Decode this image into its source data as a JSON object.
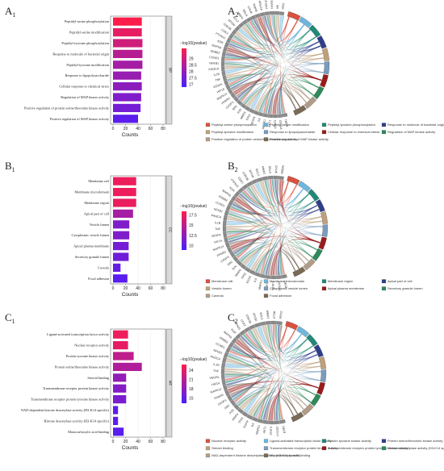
{
  "bar_color_low": "#4a1dff",
  "bar_color_high": "#ff1d4a",
  "chord_colors": [
    "#d8523f",
    "#6fb6de",
    "#1f8a77",
    "#2e3f8a",
    "#c0a07a",
    "#7a9cbf",
    "#9b1a1a",
    "#2f8a5a",
    "#b39c86",
    "#7a6a55"
  ],
  "chart_data": [
    {
      "type": "bar",
      "panel": "A1",
      "orientation": "horizontal",
      "categories": [
        "Peptidyl-serine phosphorylation",
        "Peptidyl-serine modification",
        "Peptidyl-tyrosine phosphorylation",
        "Response to molecule of bacterial origin",
        "Peptidyl-tyrosine modification",
        "Response to lipopolysaccharide",
        "Cellular response to chemical stress",
        "Regulation of MAP kinase activity",
        "Positive regulation of protein serine/threonine kinase activity",
        "Positive regulation of MAP kinase activity"
      ],
      "values": [
        46,
        46,
        47,
        47,
        47,
        45,
        46,
        45,
        44,
        40
      ],
      "pvalue_color": [
        29.8,
        29.4,
        29.0,
        28.6,
        28.3,
        28.1,
        27.9,
        27.7,
        27.5,
        27.1
      ],
      "xlabel": "Counts",
      "xlim": [
        0,
        80
      ],
      "xticks": [
        0,
        20,
        40,
        60,
        80
      ],
      "strip": "BP",
      "colorbar_title": "−log10(pvalue)",
      "colorbar_ticks": [
        29.0,
        28.5,
        28.0,
        27.5,
        27.0
      ],
      "colorbar_range": [
        26.8,
        29.8
      ]
    },
    {
      "type": "bar",
      "panel": "B1",
      "orientation": "horizontal",
      "categories": [
        "Membrane raft",
        "Membrane microdomain",
        "Membrane region",
        "Apical part of cell",
        "Vesicle lumen",
        "Cytoplasmic vesicle lumen",
        "Apical plasma membrane",
        "Secretory granule lumen",
        "Caveola",
        "Focal adhesion"
      ],
      "values": [
        37,
        37,
        37,
        32,
        26,
        26,
        25,
        25,
        12,
        23
      ],
      "pvalue_color": [
        17.6,
        17.6,
        17.4,
        13.8,
        11.8,
        11.8,
        11.2,
        11.0,
        10.3,
        9.8
      ],
      "xlabel": "Counts",
      "xlim": [
        0,
        80
      ],
      "xticks": [
        0,
        20,
        40,
        60,
        80
      ],
      "strip": "CC",
      "colorbar_title": "−log10(pvalue)",
      "colorbar_ticks": [
        17.5,
        15.0,
        12.5,
        10.0
      ],
      "colorbar_range": [
        9.0,
        18.5
      ]
    },
    {
      "type": "bar",
      "panel": "C1",
      "orientation": "horizontal",
      "categories": [
        "Ligand-activated transcription factor activity",
        "Nuclear receptor activity",
        "Protein tyrosine kinase activity",
        "Protein serine/threonine kinase activity",
        "Steroid binding",
        "Transmembrane receptor protein kinase activity",
        "Transmembrane receptor protein tyrosine kinase activity",
        "NAD-dependent histone deacetylase activity (H3-K14 specific)",
        "Histone deacetylase activity (H3-K14 specific)",
        "Monocarboxylic acid binding"
      ],
      "values": [
        24,
        24,
        33,
        46,
        21,
        21,
        21,
        8,
        8,
        17
      ],
      "pvalue_color": [
        24.8,
        24.3,
        21.5,
        20.5,
        18.5,
        17.5,
        16.8,
        14.8,
        14.8,
        14.5
      ],
      "xlabel": "Counts",
      "xlim": [
        0,
        80
      ],
      "xticks": [
        0,
        20,
        40,
        60,
        80
      ],
      "strip": "MF",
      "colorbar_title": "−log10(pvalue)",
      "colorbar_ticks": [
        24,
        21,
        18,
        15
      ],
      "colorbar_range": [
        13.5,
        26.0
      ]
    }
  ],
  "chord_panels": [
    {
      "panel": "A2",
      "genes": [
        "ESR1",
        "PTGS2",
        "STAT3",
        "AKT1",
        "MAPK1",
        "IL6",
        "EGFR",
        "TP53",
        "MMP9",
        "JUN",
        "SRC",
        "CASP3",
        "PPARG",
        "MAPK14",
        "HIF1A",
        "VEGFA",
        "TNF",
        "IL1B",
        "PIK3CA",
        "NFKB1",
        "CCND1",
        "ERBB2",
        "MAPK8",
        "KDR",
        "PTPN11",
        "CDK2",
        "GSK3B",
        "MTOR",
        "BCL2",
        "MMP2",
        "RELA",
        "CHUK",
        "IKBKB",
        "PRKCA",
        "CYP19A1",
        "HSP90AA1",
        "AR",
        "PGR"
      ],
      "legend": [
        "Peptidyl-serine phosphorylation",
        "Peptidyl-serine modification",
        "Peptidyl-tyrosine phosphorylation",
        "Response to molecule of bacterial origin",
        "Peptidyl-tyrosine modification",
        "Response to lipopolysaccharide",
        "Cellular response to chemical stress",
        "Regulation of MAP kinase activity",
        "Positive regulation of protein serine/threonine kinase activity",
        "Positive regulation of MAP kinase activity"
      ]
    },
    {
      "panel": "B2",
      "genes": [
        "ESR1",
        "PTGS2",
        "STAT3",
        "AKT1",
        "MAPK1",
        "IL6",
        "EGFR",
        "TP53",
        "MMP9",
        "JUN",
        "SRC",
        "CASP3",
        "PPARG",
        "MAPK14",
        "HIF1A",
        "VEGFA",
        "TNF",
        "IL1B",
        "PIK3CA",
        "NFKB1",
        "CCND1",
        "ERBB2",
        "MAPK8",
        "KDR",
        "PTPN11",
        "CDK2",
        "GSK3B",
        "MTOR",
        "BCL2",
        "MMP2",
        "RELA",
        "CHUK",
        "IKBKB"
      ],
      "legend": [
        "Membrane raft",
        "Membrane microdomain",
        "Membrane region",
        "Apical part of cell",
        "Vesicle lumen",
        "Cytoplasmic vesicle lumen",
        "Apical plasma membrane",
        "Secretory granule lumen",
        "Caveola",
        "Focal adhesion"
      ]
    },
    {
      "panel": "C2",
      "genes": [
        "ESR1",
        "PTGS2",
        "STAT3",
        "AKT1",
        "MAPK1",
        "IL6",
        "EGFR",
        "TP53",
        "MMP9",
        "JUN",
        "SRC",
        "CASP3",
        "PPARG",
        "MAPK14",
        "HIF1A",
        "VEGFA",
        "TNF",
        "IL1B",
        "PIK3CA",
        "NFKB1",
        "CCND1",
        "ERBB2",
        "MAPK8",
        "KDR",
        "PTPN11",
        "CDK2",
        "GSK3B",
        "MTOR",
        "BCL2",
        "MMP2",
        "RELA",
        "CHUK"
      ],
      "legend": [
        "Nuclear receptor activity",
        "Ligand-activated transcription factor activity",
        "Protein tyrosine kinase activity",
        "Protein serine/threonine kinase activity",
        "Steroid binding",
        "Transmembrane receptor protein kinase activity",
        "Transmembrane receptor protein tyrosine kinase activity",
        "Histone deacetylase activity (H3-K14 specific)",
        "NAD-dependent histone deacetylase activity (H3-K14 specific)",
        "Monocarboxylic acid binding"
      ]
    }
  ]
}
